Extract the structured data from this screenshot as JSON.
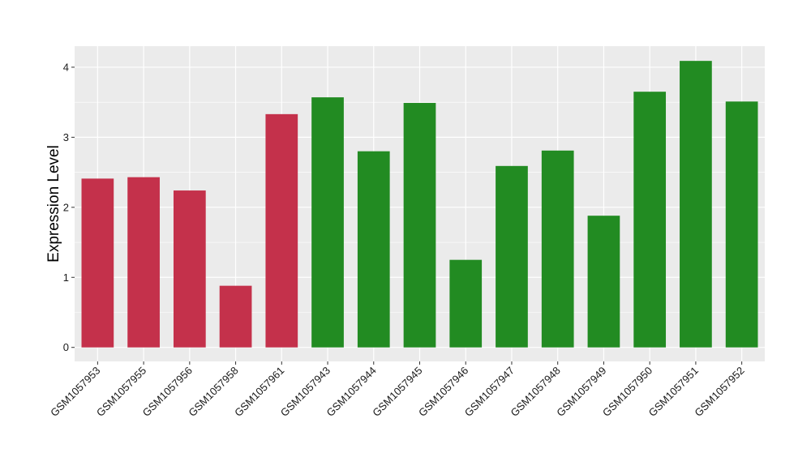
{
  "chart_data": {
    "type": "bar",
    "title": "",
    "xlabel": "",
    "ylabel": "Expression Level",
    "ylim": [
      -0.2,
      4.3
    ],
    "yticks": [
      0,
      1,
      2,
      3,
      4
    ],
    "grid": true,
    "legend": "none",
    "panel_background": "#ebebeb",
    "grid_color": "#ffffff",
    "categories": [
      "GSM1057953",
      "GSM1057955",
      "GSM1057956",
      "GSM1057958",
      "GSM1057961",
      "GSM1057943",
      "GSM1057944",
      "GSM1057945",
      "GSM1057946",
      "GSM1057947",
      "GSM1057948",
      "GSM1057949",
      "GSM1057950",
      "GSM1057951",
      "GSM1057952"
    ],
    "values": [
      2.41,
      2.43,
      2.24,
      0.88,
      3.33,
      3.57,
      2.8,
      3.49,
      1.25,
      2.59,
      2.81,
      1.88,
      3.65,
      4.09,
      3.51
    ],
    "bar_colors": [
      "#c4314b",
      "#c4314b",
      "#c4314b",
      "#c4314b",
      "#c4314b",
      "#228b22",
      "#228b22",
      "#228b22",
      "#228b22",
      "#228b22",
      "#228b22",
      "#228b22",
      "#228b22",
      "#228b22",
      "#228b22"
    ]
  }
}
